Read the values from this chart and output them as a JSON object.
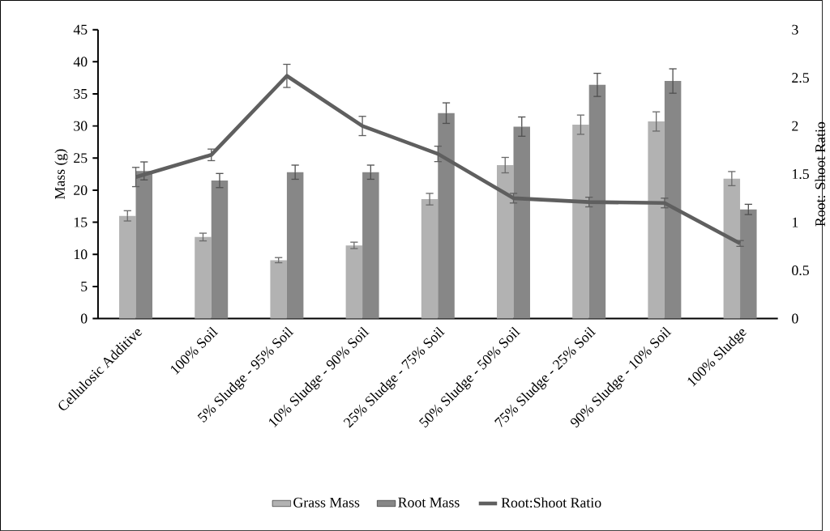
{
  "chart_data": {
    "type": "bar",
    "ylabel": "Mass (g)",
    "y2label": "Root: Shoot Ratio",
    "categories": [
      "Cellulosic Additive",
      "100% Soil",
      "5% Sludge - 95% Soil",
      "10% Sludge - 90% Soil",
      "25% Sludge - 75% Soil",
      "50% Sludge - 50% Soil",
      "75% Sludge - 25% Soil",
      "90% Sludge - 10% Soil",
      "100% Sludge"
    ],
    "series": [
      {
        "name": "Grass Mass",
        "color": "#b2b2b2",
        "values": [
          16.0,
          12.7,
          9.1,
          11.4,
          18.6,
          23.9,
          30.2,
          30.7,
          21.8
        ],
        "errors": [
          0.8,
          0.6,
          0.4,
          0.5,
          0.9,
          1.2,
          1.5,
          1.5,
          1.1
        ]
      },
      {
        "name": "Root Mass",
        "color": "#878787",
        "values": [
          23.0,
          21.5,
          22.8,
          22.8,
          32.0,
          29.9,
          36.4,
          37.0,
          17.0
        ],
        "errors": [
          1.4,
          1.1,
          1.1,
          1.1,
          1.6,
          1.5,
          1.8,
          1.9,
          0.8
        ]
      },
      {
        "name": "Root:Shoot Ratio",
        "type": "line",
        "axis": "y2",
        "color": "#5f5f5f",
        "values": [
          1.47,
          1.7,
          2.52,
          2.0,
          1.71,
          1.25,
          1.21,
          1.2,
          0.78
        ],
        "errors": [
          0.1,
          0.06,
          0.12,
          0.1,
          0.08,
          0.05,
          0.05,
          0.05,
          0.03
        ]
      }
    ],
    "ylim": [
      0,
      45
    ],
    "yticks": [
      0,
      5,
      10,
      15,
      20,
      25,
      30,
      35,
      40,
      45
    ],
    "y2lim": [
      0,
      3
    ],
    "y2ticks": [
      0,
      0.5,
      1,
      1.5,
      2,
      2.5,
      3
    ],
    "legend": "bottom"
  }
}
